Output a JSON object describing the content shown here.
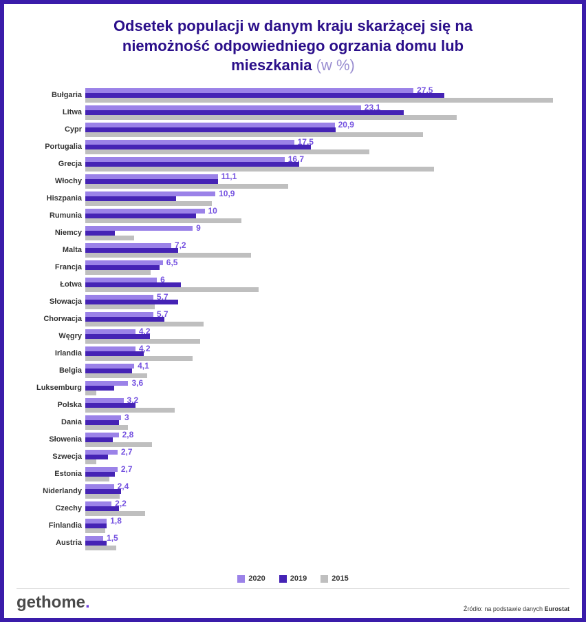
{
  "title_line1": "Odsetek populacji w danym kraju skarżącej się na",
  "title_line2": "niemożność odpowiedniego ogrzania domu lub",
  "title_line3": "mieszkania",
  "title_suffix": "(w %)",
  "colors": {
    "c2020": "#9b82e8",
    "c2019": "#4523b5",
    "c2015": "#bfbfbf",
    "border": "#3a1caa",
    "value_label": "#7451e0"
  },
  "x_max": 40,
  "legend": [
    {
      "label": "2020",
      "color": "#9b82e8"
    },
    {
      "label": "2019",
      "color": "#4523b5"
    },
    {
      "label": "2015",
      "color": "#bfbfbf"
    }
  ],
  "countries": [
    {
      "name": "Bułgaria",
      "v2020": 27.5,
      "v2019": 30.1,
      "v2015": 39.2,
      "label": "27,5"
    },
    {
      "name": "Litwa",
      "v2020": 23.1,
      "v2019": 26.7,
      "v2015": 31.1,
      "label": "23,1"
    },
    {
      "name": "Cypr",
      "v2020": 20.9,
      "v2019": 21.0,
      "v2015": 28.3,
      "label": "20,9"
    },
    {
      "name": "Portugalia",
      "v2020": 17.5,
      "v2019": 18.9,
      "v2015": 23.8,
      "label": "17,5"
    },
    {
      "name": "Grecja",
      "v2020": 16.7,
      "v2019": 17.9,
      "v2015": 29.2,
      "label": "16,7"
    },
    {
      "name": "Włochy",
      "v2020": 11.1,
      "v2019": 11.1,
      "v2015": 17.0,
      "label": "11,1"
    },
    {
      "name": "Hiszpania",
      "v2020": 10.9,
      "v2019": 7.6,
      "v2015": 10.6,
      "label": "10,9"
    },
    {
      "name": "Rumunia",
      "v2020": 10.0,
      "v2019": 9.3,
      "v2015": 13.1,
      "label": "10"
    },
    {
      "name": "Niemcy",
      "v2020": 9.0,
      "v2019": 2.5,
      "v2015": 4.1,
      "label": "9"
    },
    {
      "name": "Malta",
      "v2020": 7.2,
      "v2019": 7.8,
      "v2015": 13.9,
      "label": "7,2"
    },
    {
      "name": "Francja",
      "v2020": 6.5,
      "v2019": 6.2,
      "v2015": 5.5,
      "label": "6,5"
    },
    {
      "name": "Łotwa",
      "v2020": 6.0,
      "v2019": 8.0,
      "v2015": 14.5,
      "label": "6"
    },
    {
      "name": "Słowacja",
      "v2020": 5.7,
      "v2019": 7.8,
      "v2015": 5.8,
      "label": "5,7"
    },
    {
      "name": "Chorwacja",
      "v2020": 5.7,
      "v2019": 6.6,
      "v2015": 9.9,
      "label": "5,7"
    },
    {
      "name": "Węgry",
      "v2020": 4.2,
      "v2019": 5.4,
      "v2015": 9.6,
      "label": "4,2"
    },
    {
      "name": "Irlandia",
      "v2020": 4.2,
      "v2019": 4.9,
      "v2015": 9.0,
      "label": "4,2"
    },
    {
      "name": "Belgia",
      "v2020": 4.1,
      "v2019": 3.9,
      "v2015": 5.2,
      "label": "4,1"
    },
    {
      "name": "Luksemburg",
      "v2020": 3.6,
      "v2019": 2.4,
      "v2015": 0.9,
      "label": "3,6"
    },
    {
      "name": "Polska",
      "v2020": 3.2,
      "v2019": 4.2,
      "v2015": 7.5,
      "label": "3,2"
    },
    {
      "name": "Dania",
      "v2020": 3.0,
      "v2019": 2.8,
      "v2015": 3.6,
      "label": "3"
    },
    {
      "name": "Słowenia",
      "v2020": 2.8,
      "v2019": 2.3,
      "v2015": 5.6,
      "label": "2,8"
    },
    {
      "name": "Szwecja",
      "v2020": 2.7,
      "v2019": 1.9,
      "v2015": 0.9,
      "label": "2,7"
    },
    {
      "name": "Estonia",
      "v2020": 2.7,
      "v2019": 2.5,
      "v2015": 2.0,
      "label": "2,7"
    },
    {
      "name": "Niderlandy",
      "v2020": 2.4,
      "v2019": 3.0,
      "v2015": 2.9,
      "label": "2,4"
    },
    {
      "name": "Czechy",
      "v2020": 2.2,
      "v2019": 2.8,
      "v2015": 5.0,
      "label": "2,2"
    },
    {
      "name": "Finlandia",
      "v2020": 1.8,
      "v2019": 1.8,
      "v2015": 1.7,
      "label": "1,8"
    },
    {
      "name": "Austria",
      "v2020": 1.5,
      "v2019": 1.8,
      "v2015": 2.6,
      "label": "1,5"
    }
  ],
  "logo_part1": "get",
  "logo_part2": "home",
  "logo_dot": ".",
  "source_prefix": "Źródło: na podstawie danych ",
  "source_bold": "Eurostat"
}
